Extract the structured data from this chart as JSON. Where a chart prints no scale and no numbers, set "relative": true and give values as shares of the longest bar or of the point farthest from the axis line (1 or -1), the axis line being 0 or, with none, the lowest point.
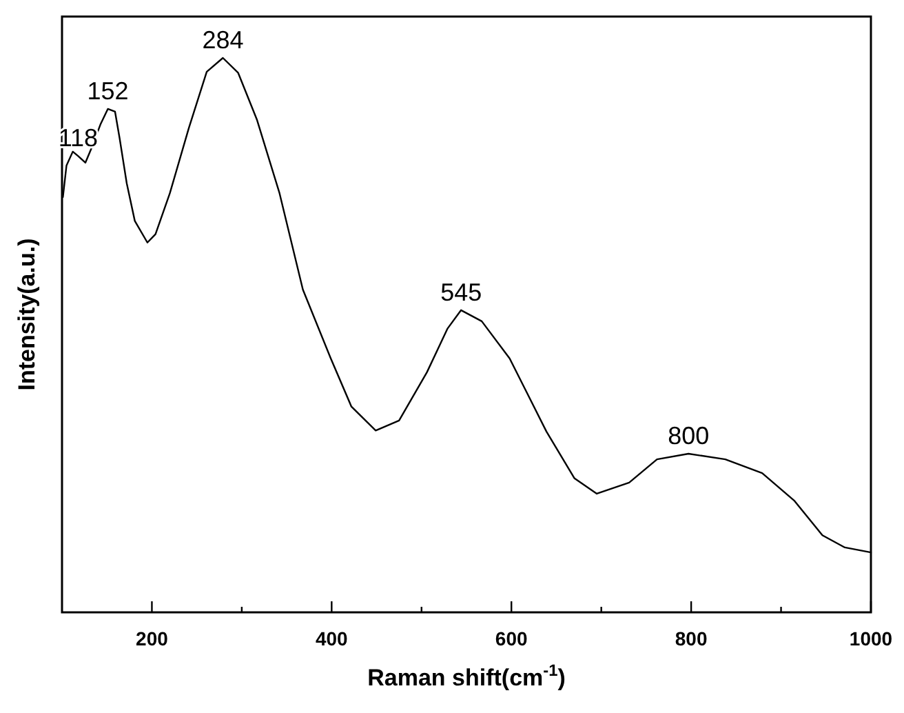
{
  "chart_data": {
    "type": "line",
    "relative": true,
    "xlabel": "Raman shift(cm$^{-1}$)",
    "ylabel": "Intensity(a.u.)",
    "xlim": [
      100,
      1000
    ],
    "xticks": [
      200,
      {
        "value": 300,
        "label": null
      },
      400,
      {
        "value": 500,
        "label": null
      },
      600,
      {
        "value": 700,
        "label": null
      },
      800,
      {
        "value": 900,
        "label": null
      },
      1000
    ],
    "grid": false,
    "line_style": "solid",
    "x": [
      101,
      105,
      112,
      118,
      126,
      133,
      143,
      151,
      159,
      164,
      172,
      181,
      195,
      204,
      220,
      241,
      261,
      279,
      296,
      317,
      342,
      368,
      399,
      422,
      449,
      475,
      506,
      529,
      544,
      567,
      598,
      639,
      670,
      695,
      731,
      762,
      797,
      838,
      879,
      915,
      946,
      971,
      1000
    ],
    "series": [
      {
        "color": "#000000",
        "values": [
          0.749,
          0.806,
          0.831,
          0.823,
          0.811,
          0.838,
          0.881,
          0.908,
          0.903,
          0.856,
          0.774,
          0.706,
          0.667,
          0.682,
          0.756,
          0.873,
          0.975,
          1.0,
          0.973,
          0.888,
          0.756,
          0.582,
          0.458,
          0.371,
          0.328,
          0.346,
          0.433,
          0.512,
          0.545,
          0.525,
          0.458,
          0.326,
          0.242,
          0.214,
          0.234,
          0.276,
          0.286,
          0.276,
          0.251,
          0.201,
          0.139,
          0.117,
          0.108
        ]
      }
    ],
    "annotations": [
      {
        "text": "118",
        "x": 118,
        "y": 0.823
      },
      {
        "text": "152",
        "x": 151,
        "y": 0.908
      },
      {
        "text": "284",
        "x": 279,
        "y": 1.0
      },
      {
        "text": "545",
        "x": 544,
        "y": 0.545
      },
      {
        "text": "800",
        "x": 797,
        "y": 0.286
      }
    ]
  }
}
